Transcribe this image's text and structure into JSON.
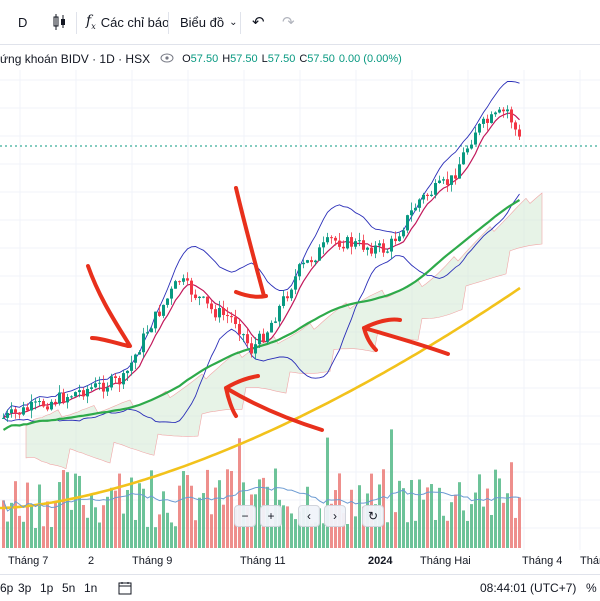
{
  "toolbar": {
    "interval": "D",
    "indicators_label": "Các chỉ báo",
    "chart_label": "Biểu đồ"
  },
  "legend": {
    "title": "ứng khoán BIDV · 1D · HSX",
    "o_key": "O",
    "o_val": "57.50",
    "h_key": "H",
    "h_val": "57.50",
    "l_key": "L",
    "l_val": "57.50",
    "c_key": "C",
    "c_val": "57.50",
    "change": "0.00 (0.00%)"
  },
  "x_axis": {
    "labels": [
      "Tháng 7",
      "2",
      "Tháng 9",
      "Tháng 11",
      "2024",
      "Tháng Hai",
      "Tháng 4",
      "Tháng"
    ]
  },
  "bottom": {
    "ranges": [
      "6p",
      "3p",
      "1p",
      "5n",
      "1n"
    ],
    "time": "08:44:01 (UTC+7)",
    "percent": "%"
  },
  "colors": {
    "up": "#089981",
    "down": "#f23645",
    "ma_green": "#2eaa4a",
    "ma_yellow": "#f2c21b",
    "bb": "#2a2eb8",
    "annotation": "#e8301c"
  }
}
